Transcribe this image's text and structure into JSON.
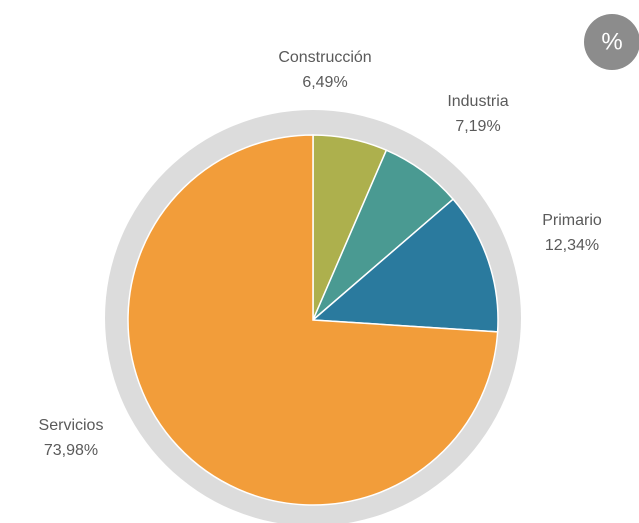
{
  "chart_data": {
    "type": "pie",
    "categories": [
      "Construcción",
      "Industria",
      "Primario",
      "Servicios"
    ],
    "values": [
      6.49,
      7.19,
      12.34,
      73.98
    ],
    "value_labels": [
      "6,49%",
      "7,19%",
      "12,34%",
      "73,98%"
    ],
    "colors": [
      "#adb04d",
      "#4a9a92",
      "#2a7a9e",
      "#f29d3a"
    ],
    "badge": "%"
  }
}
